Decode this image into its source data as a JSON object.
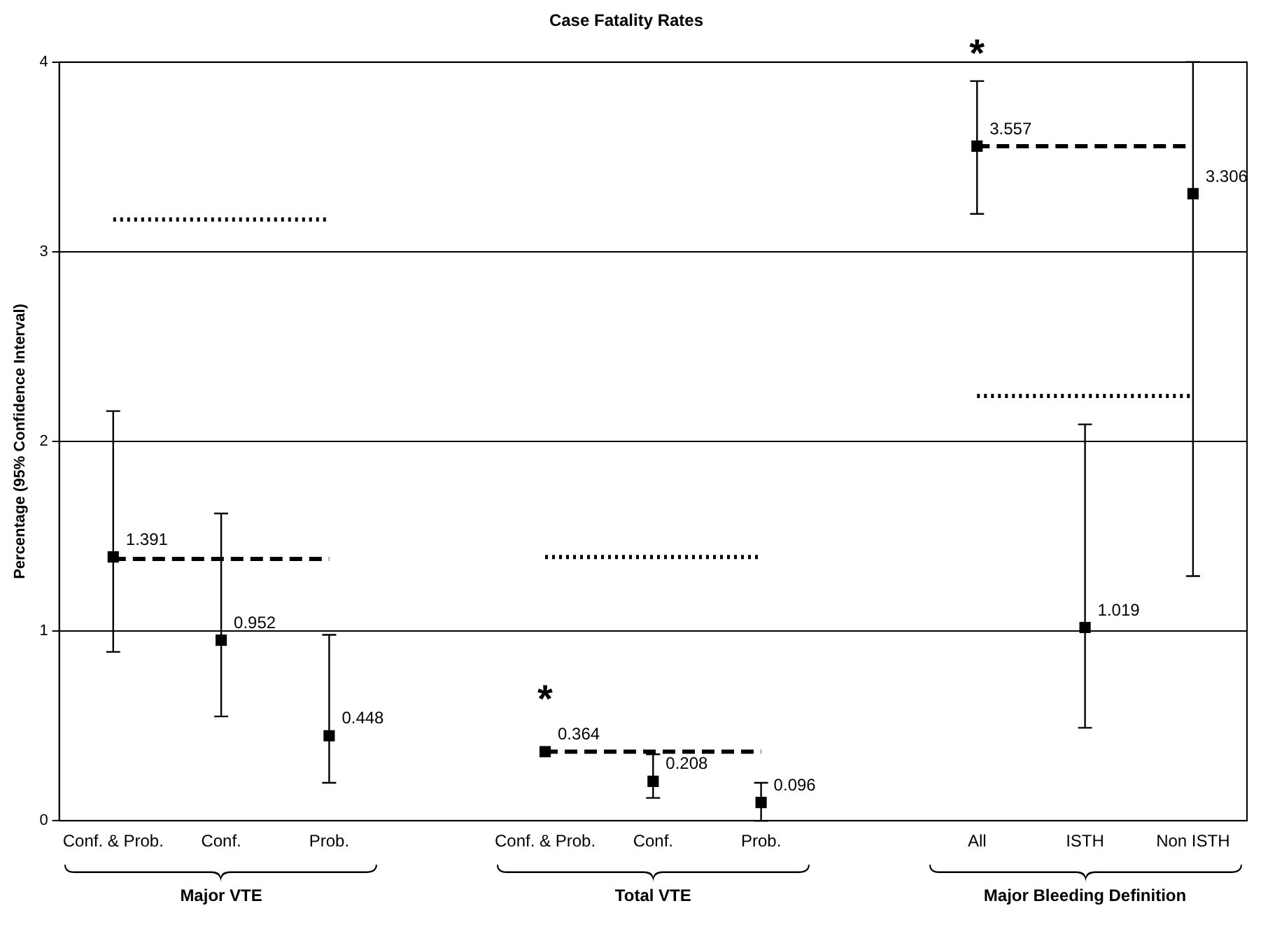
{
  "chart_data": {
    "type": "scatter",
    "title": "Case Fatality Rates",
    "ylabel": "Percentage (95% Confidence Interval)",
    "categories": [
      "Conf. & Prob.",
      "Conf.",
      "Prob.",
      null,
      "Conf. & Prob.",
      "Conf.",
      "Prob.",
      null,
      "All",
      "ISTH",
      "Non ISTH"
    ],
    "series": [
      {
        "type": "scatter",
        "color": "#000000",
        "marker": "square",
        "values": [
          1.391,
          0.952,
          0.448,
          null,
          0.364,
          0.208,
          0.096,
          null,
          3.557,
          1.019,
          3.306
        ],
        "errors": [
          [
            0.89,
            2.16
          ],
          [
            0.55,
            1.62
          ],
          [
            0.2,
            0.98
          ],
          null,
          null,
          [
            0.12,
            0.35
          ],
          [
            0,
            0.2
          ],
          null,
          [
            3.2,
            3.9
          ],
          [
            0.49,
            2.09
          ],
          [
            1.29,
            4
          ]
        ],
        "value_labels": [
          "1.391",
          "0.952",
          "0.448",
          null,
          "0.364",
          "0.208",
          "0.096",
          null,
          "3.557",
          "1.019",
          "3.306"
        ]
      },
      {
        "type": "line",
        "color": "#000000",
        "marker": "none",
        "line_style": "dashed",
        "values": [
          1.38,
          1.38,
          1.38,
          null,
          0.364,
          0.364,
          0.364,
          null,
          3.557,
          3.557,
          3.557
        ]
      },
      {
        "type": "line",
        "color": "#000000",
        "marker": "none",
        "line_style": "dotted",
        "values": [
          3.17,
          3.17,
          3.17,
          null,
          1.39,
          1.39,
          1.39,
          null,
          2.24,
          2.24,
          2.24
        ]
      }
    ],
    "ylim": [
      0,
      4
    ],
    "yticks": [
      0,
      1,
      2,
      3,
      4
    ],
    "grid": "y",
    "legend": false,
    "annotations": [
      {
        "text": "*",
        "x": "All",
        "y": 3.9
      },
      "*",
      "Major VTE",
      "Total VTE",
      "Major Bleeding Definition"
    ]
  }
}
